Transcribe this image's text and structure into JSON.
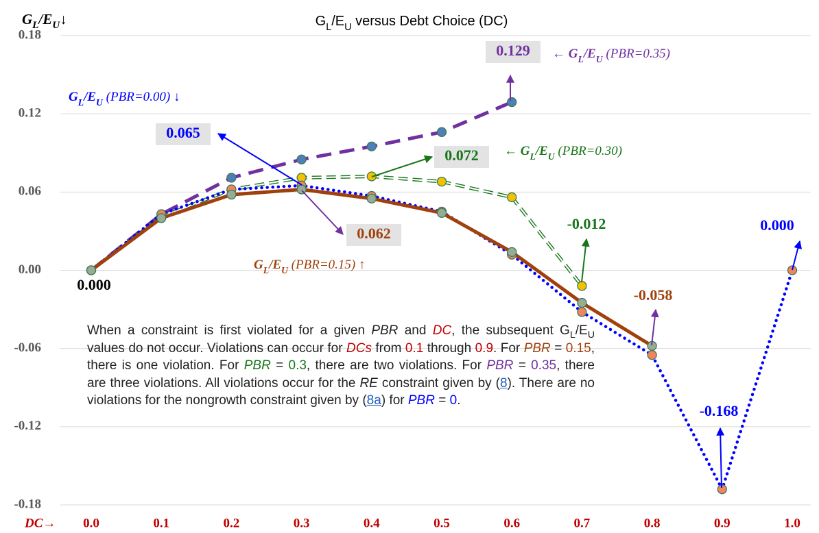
{
  "chart_data": {
    "type": "line",
    "title": "GL/EU versus Debt Choice (DC)",
    "y_label": "GL/EU↓",
    "x_label": "DC→",
    "x": [
      0,
      0.1,
      0.2,
      0.3,
      0.4,
      0.5,
      0.6,
      0.7,
      0.8,
      0.9,
      1.0
    ],
    "xlim": [
      0,
      1
    ],
    "xticks": [
      {
        "value": 0,
        "label": "0.0"
      },
      {
        "value": 0.1,
        "label": "0.1"
      },
      {
        "value": 0.2,
        "label": "0.2"
      },
      {
        "value": 0.3,
        "label": "0.3"
      },
      {
        "value": 0.4,
        "label": "0.4"
      },
      {
        "value": 0.5,
        "label": "0.5"
      },
      {
        "value": 0.6,
        "label": "0.6"
      },
      {
        "value": 0.7,
        "label": "0.7"
      },
      {
        "value": 0.8,
        "label": "0.8"
      },
      {
        "value": 0.9,
        "label": "0.9"
      },
      {
        "value": 1.0,
        "label": "1.0"
      }
    ],
    "ylim": [
      -0.18,
      0.18
    ],
    "yticks": [
      0.18,
      0.12,
      0.06,
      {
        "value": 0,
        "label": "0.00"
      },
      -0.06,
      -0.12,
      -0.18
    ],
    "grid": true,
    "series": [
      {
        "name": "GL/EU (PBR=0.00) ↓",
        "color": "#0000ff",
        "marker_color": "#f0855f",
        "style": "dotted",
        "values": [
          0,
          0.043,
          0.062,
          0.065,
          0.057,
          0.045,
          0.012,
          -0.032,
          -0.065,
          -0.168,
          0
        ]
      },
      {
        "name": "GL/EU (PBR=0.15) ↑",
        "color": "#a0410d",
        "marker_color": "#9aab94",
        "style": "solid",
        "values": [
          0,
          0.04,
          0.058,
          0.062,
          0.055,
          0.044,
          0.014,
          -0.025,
          -0.058,
          null,
          null
        ]
      },
      {
        "name": "← GL/EU (PBR=0.30)",
        "color": "#17761a",
        "marker_color": "#f2c200",
        "style": "hollow-dashed",
        "values": [
          0,
          0.041,
          0.062,
          0.071,
          0.072,
          0.068,
          0.056,
          -0.012,
          null,
          null,
          null
        ]
      },
      {
        "name": "← GL/EU (PBR=0.35)",
        "color": "#7030a0",
        "marker_color": "#4f7fb8",
        "style": "dashed",
        "values": [
          0,
          0.043,
          0.071,
          0.085,
          0.095,
          0.106,
          0.129,
          null,
          null,
          null,
          null
        ]
      }
    ],
    "annotations": [
      {
        "text": "0.129",
        "color": "#7030a0"
      },
      {
        "text": "0.065",
        "color": "#0000ff"
      },
      {
        "text": "0.072",
        "color": "#17761a"
      },
      {
        "text": "0.062",
        "color": "#a0410d"
      },
      {
        "text": "-0.012",
        "color": "#17761a"
      },
      {
        "text": "0.000",
        "color": "#000000"
      },
      {
        "text": "-0.058",
        "color": "#a0410d"
      },
      {
        "text": "-0.168",
        "color": "#0000ff"
      },
      {
        "text": "0.000",
        "color": "#0000ff"
      }
    ],
    "note": [
      {
        "text": "When a constraint is first violated for a given "
      },
      {
        "text": "PBR",
        "italic": true
      },
      {
        "text": " and "
      },
      {
        "text": "DC",
        "italic": true,
        "color": "#c00000"
      },
      {
        "text": ", the subsequent G"
      },
      {
        "text": "L",
        "sub": true
      },
      {
        "text": "/E"
      },
      {
        "text": "U",
        "sub": true
      },
      {
        "text": " values do not occur. Violations can occur for "
      },
      {
        "text": "DCs",
        "italic": true,
        "color": "#c00000"
      },
      {
        "text": " from "
      },
      {
        "text": "0.1",
        "color": "#c00000"
      },
      {
        "text": " through "
      },
      {
        "text": "0.9",
        "color": "#c00000"
      },
      {
        "text": ". For "
      },
      {
        "text": "PBR",
        "italic": true,
        "color": "#a0410d"
      },
      {
        "text": " = "
      },
      {
        "text": "0.15",
        "color": "#a0410d"
      },
      {
        "text": ", there is one violation. For "
      },
      {
        "text": "PBR",
        "italic": true,
        "color": "#17761a"
      },
      {
        "text": " = "
      },
      {
        "text": "0.3",
        "color": "#17761a"
      },
      {
        "text": ", there are two violations. For "
      },
      {
        "text": "PBR",
        "italic": true,
        "color": "#7030a0"
      },
      {
        "text": " = "
      },
      {
        "text": "0.35",
        "color": "#7030a0"
      },
      {
        "text": ", there are three violations. All violations occur for the "
      },
      {
        "text": "RE",
        "italic": true
      },
      {
        "text": " constraint given by ("
      },
      {
        "text": "8",
        "link": true
      },
      {
        "text": "). There are no violations for the nongrowth constraint given by ("
      },
      {
        "text": "8a",
        "link": true
      },
      {
        "text": ") for "
      },
      {
        "text": "PBR",
        "italic": true,
        "color": "#0000ff"
      },
      {
        "text": " = "
      },
      {
        "text": "0",
        "color": "#0000ff"
      },
      {
        "text": "."
      }
    ]
  }
}
